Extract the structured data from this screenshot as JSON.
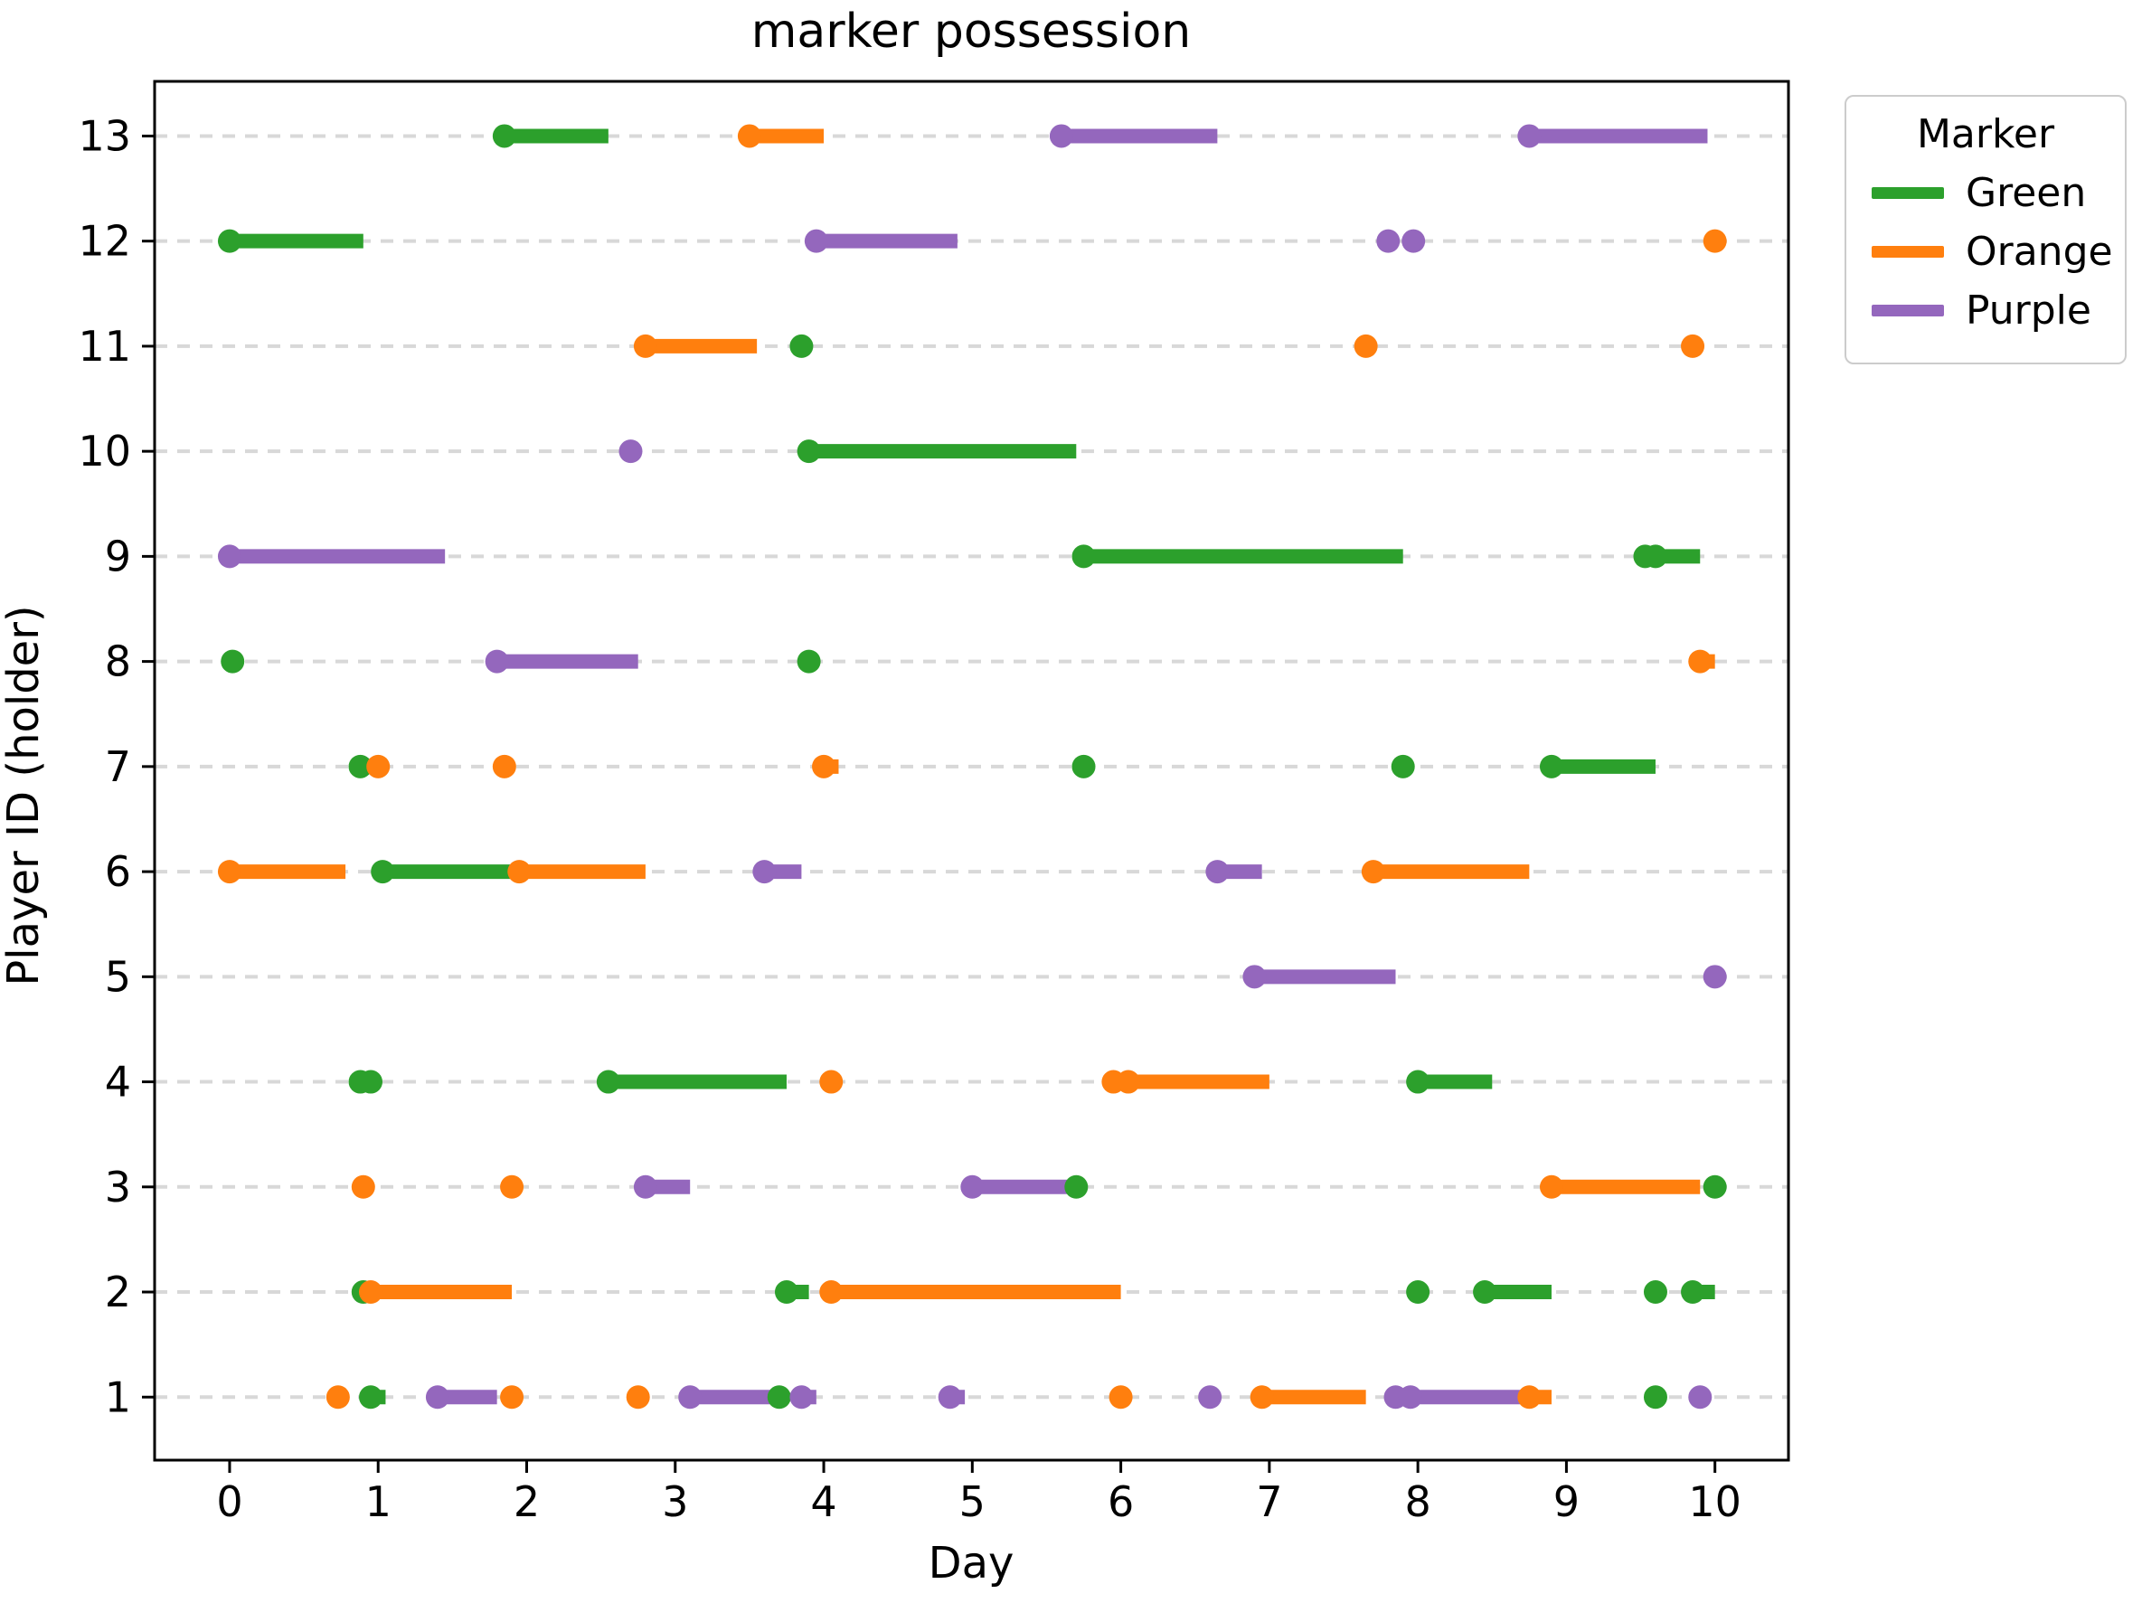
{
  "title": "marker possession",
  "axes": {
    "xlabel": "Day",
    "ylabel": "Player ID (holder)",
    "xticks": [
      "0",
      "1",
      "2",
      "3",
      "4",
      "5",
      "6",
      "7",
      "8",
      "9",
      "10"
    ],
    "xtick_values": [
      0,
      1,
      2,
      3,
      4,
      5,
      6,
      7,
      8,
      9,
      10
    ],
    "yticks": [
      "1",
      "2",
      "3",
      "4",
      "5",
      "6",
      "7",
      "8",
      "9",
      "10",
      "11",
      "12",
      "13"
    ],
    "ytick_values": [
      1,
      2,
      3,
      4,
      5,
      6,
      7,
      8,
      9,
      10,
      11,
      12,
      13
    ],
    "xlim": [
      -0.505,
      10.495
    ],
    "ylim": [
      0.4,
      13.52
    ],
    "grid": "horizontal-dashed"
  },
  "legend": {
    "title": "Marker",
    "position": "upper-right-outside",
    "entries": [
      {
        "label": "Green",
        "color": "#2ca02c"
      },
      {
        "label": "Orange",
        "color": "#ff7f0e"
      },
      {
        "label": "Purple",
        "color": "#9467bd"
      }
    ]
  },
  "colors": {
    "Green": "#2ca02c",
    "Orange": "#ff7f0e",
    "Purple": "#9467bd",
    "grid": "#d8d8d8",
    "spine": "#000000"
  },
  "chart_data": {
    "type": "timeline",
    "title": "marker possession",
    "xlabel": "Day",
    "ylabel": "Player ID (holder)",
    "x_range": [
      0,
      10
    ],
    "rows": [
      {
        "player": 13,
        "segments": [
          {
            "marker": "Green",
            "start": 1.85,
            "end": 2.55
          },
          {
            "marker": "Orange",
            "start": 3.5,
            "end": 4.0
          },
          {
            "marker": "Purple",
            "start": 5.6,
            "end": 6.65
          },
          {
            "marker": "Purple",
            "start": 8.75,
            "end": 9.95
          }
        ]
      },
      {
        "player": 12,
        "segments": [
          {
            "marker": "Green",
            "start": 0.0,
            "end": 0.9
          },
          {
            "marker": "Purple",
            "start": 3.95,
            "end": 4.9
          },
          {
            "marker": "Purple",
            "start": 7.8,
            "end": 7.8
          },
          {
            "marker": "Purple",
            "start": 7.97,
            "end": 7.97
          },
          {
            "marker": "Orange",
            "start": 10.0,
            "end": 10.0
          }
        ]
      },
      {
        "player": 11,
        "segments": [
          {
            "marker": "Orange",
            "start": 2.8,
            "end": 3.55
          },
          {
            "marker": "Green",
            "start": 3.85,
            "end": 3.85
          },
          {
            "marker": "Orange",
            "start": 7.65,
            "end": 7.65
          },
          {
            "marker": "Orange",
            "start": 9.85,
            "end": 9.85
          }
        ]
      },
      {
        "player": 10,
        "segments": [
          {
            "marker": "Purple",
            "start": 2.7,
            "end": 2.7
          },
          {
            "marker": "Green",
            "start": 3.9,
            "end": 5.7
          }
        ]
      },
      {
        "player": 9,
        "segments": [
          {
            "marker": "Purple",
            "start": 0.0,
            "end": 1.45
          },
          {
            "marker": "Green",
            "start": 5.75,
            "end": 7.9
          },
          {
            "marker": "Green",
            "start": 9.53,
            "end": 9.53
          },
          {
            "marker": "Green",
            "start": 9.6,
            "end": 9.9
          }
        ]
      },
      {
        "player": 8,
        "segments": [
          {
            "marker": "Green",
            "start": 0.02,
            "end": 0.02
          },
          {
            "marker": "Purple",
            "start": 1.8,
            "end": 2.75
          },
          {
            "marker": "Green",
            "start": 3.9,
            "end": 3.9
          },
          {
            "marker": "Orange",
            "start": 9.9,
            "end": 10.0
          }
        ]
      },
      {
        "player": 7,
        "segments": [
          {
            "marker": "Green",
            "start": 0.88,
            "end": 0.88
          },
          {
            "marker": "Orange",
            "start": 1.0,
            "end": 1.0
          },
          {
            "marker": "Orange",
            "start": 1.85,
            "end": 1.85
          },
          {
            "marker": "Orange",
            "start": 4.0,
            "end": 4.1
          },
          {
            "marker": "Green",
            "start": 5.75,
            "end": 5.75
          },
          {
            "marker": "Green",
            "start": 7.9,
            "end": 7.9
          },
          {
            "marker": "Green",
            "start": 8.9,
            "end": 9.6
          }
        ]
      },
      {
        "player": 6,
        "segments": [
          {
            "marker": "Orange",
            "start": 0.0,
            "end": 0.78
          },
          {
            "marker": "Green",
            "start": 1.03,
            "end": 1.95
          },
          {
            "marker": "Orange",
            "start": 1.95,
            "end": 2.8
          },
          {
            "marker": "Purple",
            "start": 3.6,
            "end": 3.85
          },
          {
            "marker": "Purple",
            "start": 6.65,
            "end": 6.95
          },
          {
            "marker": "Orange",
            "start": 7.7,
            "end": 8.75
          }
        ]
      },
      {
        "player": 5,
        "segments": [
          {
            "marker": "Purple",
            "start": 6.9,
            "end": 7.85
          },
          {
            "marker": "Purple",
            "start": 10.0,
            "end": 10.0
          }
        ]
      },
      {
        "player": 4,
        "segments": [
          {
            "marker": "Green",
            "start": 0.88,
            "end": 0.88
          },
          {
            "marker": "Green",
            "start": 0.95,
            "end": 0.95
          },
          {
            "marker": "Green",
            "start": 2.55,
            "end": 3.75
          },
          {
            "marker": "Orange",
            "start": 4.05,
            "end": 4.05
          },
          {
            "marker": "Orange",
            "start": 5.95,
            "end": 5.95
          },
          {
            "marker": "Orange",
            "start": 6.05,
            "end": 7.0
          },
          {
            "marker": "Green",
            "start": 8.0,
            "end": 8.5
          }
        ]
      },
      {
        "player": 3,
        "segments": [
          {
            "marker": "Orange",
            "start": 0.9,
            "end": 0.9
          },
          {
            "marker": "Orange",
            "start": 1.9,
            "end": 1.9
          },
          {
            "marker": "Purple",
            "start": 2.8,
            "end": 3.1
          },
          {
            "marker": "Purple",
            "start": 5.0,
            "end": 5.65
          },
          {
            "marker": "Green",
            "start": 5.7,
            "end": 5.7
          },
          {
            "marker": "Orange",
            "start": 8.9,
            "end": 9.9
          },
          {
            "marker": "Green",
            "start": 10.0,
            "end": 10.0
          }
        ]
      },
      {
        "player": 2,
        "segments": [
          {
            "marker": "Green",
            "start": 0.9,
            "end": 0.9
          },
          {
            "marker": "Orange",
            "start": 0.95,
            "end": 1.9
          },
          {
            "marker": "Green",
            "start": 3.75,
            "end": 3.9
          },
          {
            "marker": "Orange",
            "start": 4.05,
            "end": 6.0
          },
          {
            "marker": "Green",
            "start": 8.0,
            "end": 8.0
          },
          {
            "marker": "Green",
            "start": 8.45,
            "end": 8.9
          },
          {
            "marker": "Green",
            "start": 9.6,
            "end": 9.6
          },
          {
            "marker": "Green",
            "start": 9.85,
            "end": 10.0
          }
        ]
      },
      {
        "player": 1,
        "segments": [
          {
            "marker": "Orange",
            "start": 0.73,
            "end": 0.73
          },
          {
            "marker": "Green",
            "start": 0.95,
            "end": 1.05
          },
          {
            "marker": "Purple",
            "start": 1.4,
            "end": 1.8
          },
          {
            "marker": "Orange",
            "start": 1.9,
            "end": 1.9
          },
          {
            "marker": "Orange",
            "start": 2.75,
            "end": 2.75
          },
          {
            "marker": "Purple",
            "start": 3.1,
            "end": 3.65
          },
          {
            "marker": "Green",
            "start": 3.7,
            "end": 3.7
          },
          {
            "marker": "Purple",
            "start": 3.85,
            "end": 3.95
          },
          {
            "marker": "Purple",
            "start": 4.85,
            "end": 4.95
          },
          {
            "marker": "Orange",
            "start": 6.0,
            "end": 6.0
          },
          {
            "marker": "Purple",
            "start": 6.6,
            "end": 6.6
          },
          {
            "marker": "Orange",
            "start": 6.95,
            "end": 7.65
          },
          {
            "marker": "Purple",
            "start": 7.85,
            "end": 7.85
          },
          {
            "marker": "Purple",
            "start": 7.95,
            "end": 8.7
          },
          {
            "marker": "Orange",
            "start": 8.75,
            "end": 8.9
          },
          {
            "marker": "Green",
            "start": 9.6,
            "end": 9.6
          },
          {
            "marker": "Purple",
            "start": 9.9,
            "end": 9.95
          }
        ]
      }
    ]
  }
}
